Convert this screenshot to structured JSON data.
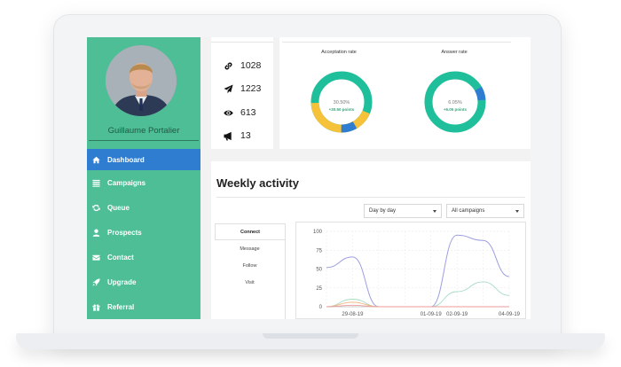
{
  "user": {
    "name": "Guillaume Portalier"
  },
  "sidebar": {
    "items": [
      {
        "label": "Dashboard",
        "icon": "home-icon",
        "active": true
      },
      {
        "label": "Campaigns",
        "icon": "list-icon"
      },
      {
        "label": "Queue",
        "icon": "refresh-icon"
      },
      {
        "label": "Prospects",
        "icon": "user-icon"
      },
      {
        "label": "Contact",
        "icon": "envelope-icon"
      },
      {
        "label": "Upgrade",
        "icon": "rocket-icon"
      },
      {
        "label": "Referral",
        "icon": "gift-icon"
      }
    ]
  },
  "stats": [
    {
      "value": "1028",
      "icon": "link-icon"
    },
    {
      "value": "1223",
      "icon": "paper-plane-icon"
    },
    {
      "value": "613",
      "icon": "eye-icon"
    },
    {
      "value": "13",
      "icon": "megaphone-icon"
    }
  ],
  "rates": {
    "acceptance": {
      "label": "Acceptation rate",
      "value": "30.50%",
      "delta": "+30.50 points",
      "percent": 0.305
    },
    "answer": {
      "label": "Answer rate",
      "value": "6.05%",
      "delta": "+6.05 points",
      "percent": 0.0605
    }
  },
  "colors": {
    "sidebar": "#4dbe95",
    "active": "#2f7dd1",
    "teal": "#1fbf9b",
    "yellow": "#f5c23a",
    "blue": "#2f7dd1"
  },
  "weekly": {
    "title": "Weekly activity",
    "period_select": "Day by day",
    "campaign_select": "All campaigns",
    "tabs": [
      "Connect",
      "Message",
      "Follow",
      "Visit"
    ]
  },
  "chart_data": {
    "type": "line",
    "x": [
      "28-08-19",
      "29-08-19",
      "30-08-19",
      "31-08-19",
      "01-09-19",
      "02-09-19",
      "03-09-19",
      "04-09-19"
    ],
    "x_tick_labels": [
      "29-08-19",
      "01-09-19",
      "02-09-19",
      "04-09-19"
    ],
    "ylim": [
      0,
      100
    ],
    "y_ticks": [
      0,
      25,
      50,
      75,
      100
    ],
    "grid": true,
    "series": [
      {
        "color": "#9c9ee0",
        "values": [
          52,
          66,
          0,
          0,
          0,
          95,
          88,
          40
        ]
      },
      {
        "color": "#a6dcc8",
        "values": [
          0,
          10,
          0,
          0,
          0,
          20,
          33,
          15
        ]
      },
      {
        "color": "#f2b27a",
        "values": [
          0,
          6,
          0,
          0,
          0,
          0,
          0,
          0
        ]
      },
      {
        "color": "#ee9b9b",
        "values": [
          0,
          2,
          0,
          0,
          0,
          0,
          0,
          0
        ]
      }
    ]
  }
}
